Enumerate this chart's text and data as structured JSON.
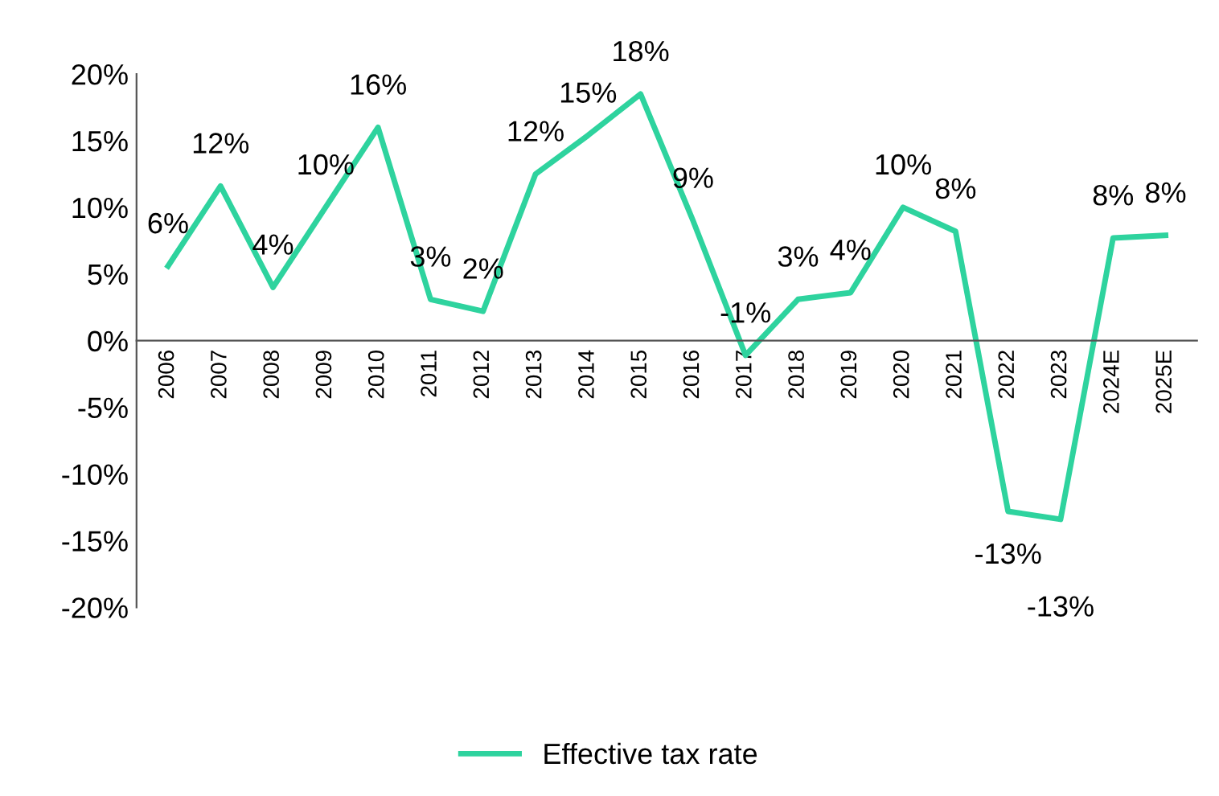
{
  "chart_data": {
    "type": "line",
    "categories": [
      "2006",
      "2007",
      "2008",
      "2009",
      "2010",
      "2011",
      "2012",
      "2013",
      "2014",
      "2015",
      "2016",
      "2017",
      "2018",
      "2019",
      "2020",
      "2021",
      "2022",
      "2023",
      "2024E",
      "2025E"
    ],
    "series": [
      {
        "name": "Effective tax rate",
        "color": "#2ed39e",
        "values": [
          5.6,
          11.6,
          4.0,
          10.0,
          16.0,
          3.1,
          2.2,
          12.5,
          15.4,
          18.5,
          9.0,
          -1.1,
          3.1,
          3.6,
          10.0,
          8.2,
          -12.8,
          -13.4,
          7.7,
          7.9
        ],
        "value_labels": [
          "6%",
          "12%",
          "4%",
          "10%",
          "16%",
          "3%",
          "2%",
          "12%",
          "15%",
          "18%",
          "9%",
          "-1%",
          "3%",
          "4%",
          "10%",
          "8%",
          "-13%",
          "-13%",
          "8%",
          "8%"
        ]
      }
    ],
    "ylim": [
      -20,
      20
    ],
    "yticks": [
      {
        "value": -20,
        "label": "-20%"
      },
      {
        "value": -15,
        "label": "-15%"
      },
      {
        "value": -10,
        "label": "-10%"
      },
      {
        "value": -5,
        "label": "-5%"
      },
      {
        "value": 0,
        "label": "0%"
      },
      {
        "value": 5,
        "label": "5%"
      },
      {
        "value": 10,
        "label": "10%"
      },
      {
        "value": 15,
        "label": "15%"
      },
      {
        "value": 20,
        "label": "20%"
      }
    ],
    "grid": false,
    "legend": "bottom",
    "marker": "none",
    "line_style": "solid"
  }
}
